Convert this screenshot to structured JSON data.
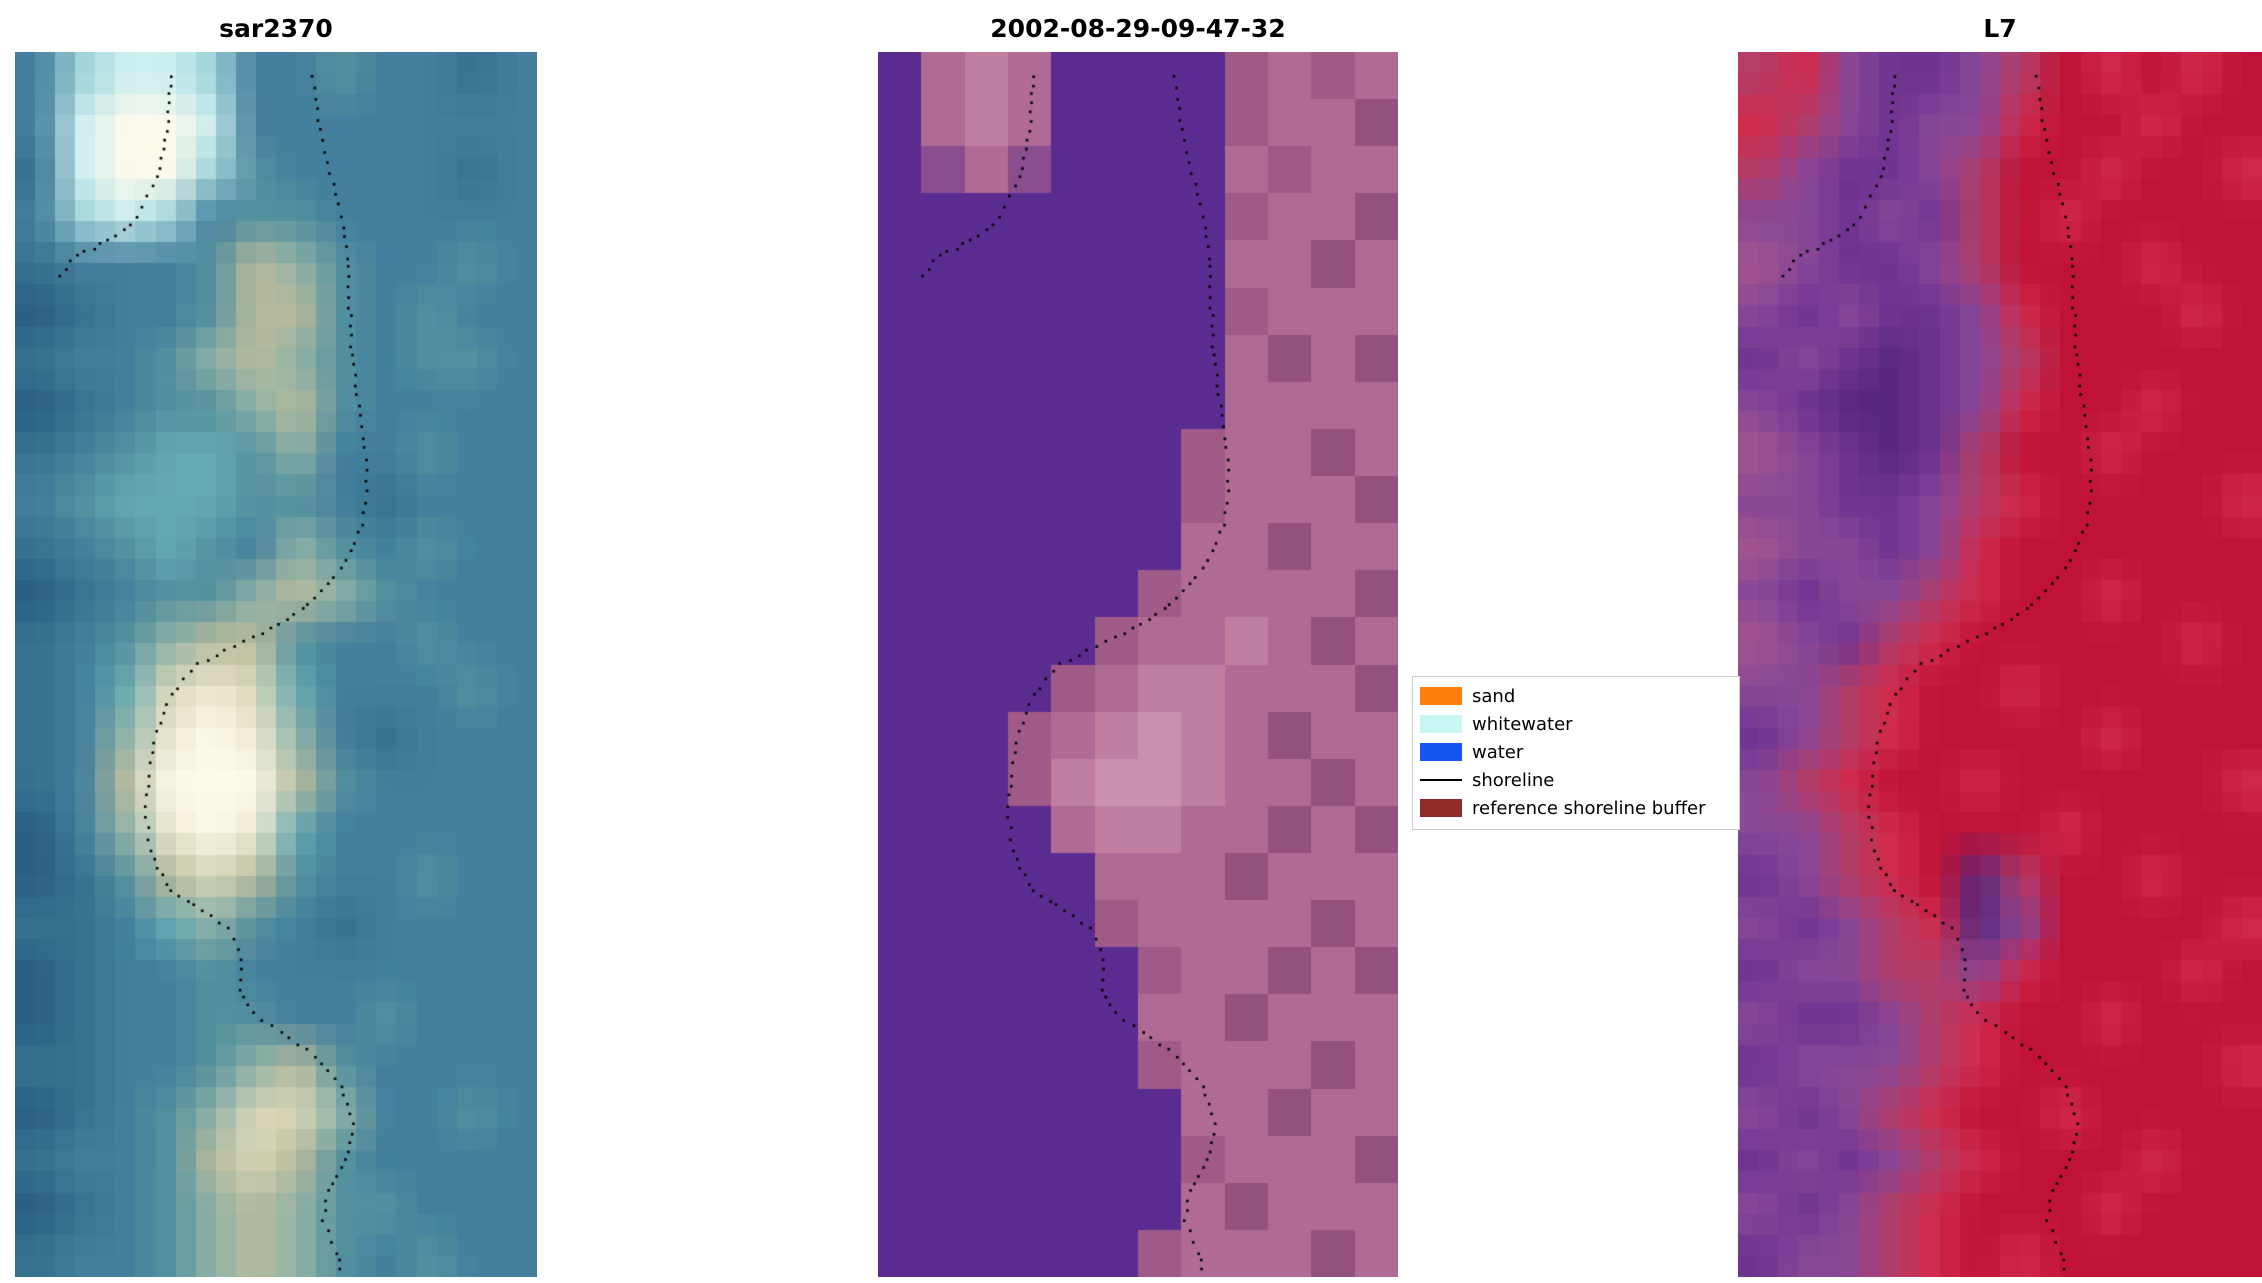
{
  "chart_data": {
    "type": "heatmap",
    "subtype": "satellite-image-classification-panels",
    "title": "",
    "grid": "off",
    "axes": "off",
    "legend_position": "center-right between panel 2 and panel 3",
    "panels": [
      {
        "title": "sar2370",
        "description": "SAR satellite image tile, blue/teal tones with bright cream blob center-left and pale cyan patch top-left, dotted shoreline overlay",
        "smooth": true,
        "blocks": [
          26,
          58
        ],
        "palette": {
          "a": "#2a5f85",
          "b": "#377390",
          "c": "#44809d",
          "d": "#55929f",
          "e": "#66aab2",
          "f": "#8fb3a8",
          "g": "#b9bb9c",
          "h": "#d9d7b8",
          "i": "#efe9d2",
          "j": "#fdfbec",
          "k": "#cdeff0",
          "l": "#9ed3da"
        },
        "pixel_grid": [
          "clkklccdccbc",
          "ckjjkccccccc",
          "bkjjldccccbc",
          "clklcddccccc",
          "bcccdgfdccdc",
          "abccdggdcdcc",
          "bccdfgfdcddc",
          "abcddfgdcccc",
          "bcdeedfccdcc",
          "cdeeeddcbccc",
          "bcdedcfdcdcc",
          "abcddfgfdccc",
          "bcdfggdccdcc",
          "bcehihecccdc",
          "bcfijifcbccc",
          "bcgjjjgdcccc",
          "acfijieccccc",
          "abdghgdccdcc",
          "bbcefdcbcccc",
          "abccdccccccc",
          "abccddccdccc",
          "bbccdfgdcccc",
          "abcdfhhfccdc",
          "bccdghgdcccc",
          "abcdfgfddccc",
          "bccdfgfdcdcc"
        ]
      },
      {
        "title": "2002-08-29-09-47-32",
        "description": "Classified optical image: flat purple water-class region on left, mauve/pink land on right with stepped class boundary, pink patch top-left, dotted shoreline overlay",
        "smooth": false,
        "blocks": [
          24,
          52
        ],
        "palette": {
          "p": "#5b2c90",
          "q": "#8a4d8d",
          "r": "#a05a88",
          "s": "#b06b94",
          "t": "#c07fa0",
          "u": "#cb90ac",
          "v": "#94517e"
        },
        "pixel_grid": [
          "pstspppprsrs",
          "pstspppprssv",
          "pqsqppppsrss",
          "pppppppprssv",
          "ppppppppssvs",
          "pppppppprsss",
          "ppppppppsvsv",
          "ppppppppssss",
          "ppppppprssvs",
          "ppppppprsssv",
          "pppppppssvss",
          "pppppprssssv",
          "ppppprsstsvs",
          "pppprsttsssv",
          "ppprstutsvss",
          "ppprtuutssvs",
          "ppppsttssvsv",
          "pppppsssvsss",
          "ppppprssssvs",
          "pppppprssvsv",
          "ppppppssvsss",
          "pppppprsssvs",
          "pppppppssvss",
          "ppppppprsssv",
          "pppppppsvsss",
          "pppppprsssvs"
        ]
      },
      {
        "title": "L7",
        "description": "Landsat 7 false-color tile: crimson red on right and across middle, purple/mauve on left, dark purple patches, dotted shoreline overlay",
        "smooth": true,
        "blocks": [
          26,
          58
        ],
        "palette": {
          "A": "#c01236",
          "B": "#d22a4c",
          "C": "#b43e68",
          "D": "#8a4898",
          "E": "#6f3492",
          "F": "#57287f",
          "G": "#a2568e",
          "H": "#c96d8e"
        },
        "pixel_grid": [
          "CBDEEDCABABA",
          "BCDEDDBAABAA",
          "CDEEDCAABAAB",
          "DDEDECABAAAA",
          "GDEEDCAAABAA",
          "DEDEEDBAAABA",
          "EDEFEDCAAAAA",
          "DEFFEDBAABAA",
          "GDEFECAABAAA",
          "DDEEDCBAAAAB",
          "GDDEDBAAAAAA",
          "DEDDCBAABAAA",
          "GDECBAAAAABA",
          "DDCBAABAAAAA",
          "EDCBAAAABAAA",
          "DCBAABAAAAAB",
          "DDCBAAABAAAA",
          "EDCBAFCAABAA",
          "DEDCBFDAAAAB",
          "EDDCCDBAAABA",
          "DEEDCBAABAAA",
          "EDDDCBAAAAAB",
          "DEDCBAABAAAA",
          "EDEDCBAAABAA",
          "DEDCBAAABAAA",
          "EDDCBABAAAAA"
        ]
      }
    ],
    "shoreline": {
      "color": "#000000",
      "style": "dotted",
      "paths": [
        [
          [
            0.57,
            0.02
          ],
          [
            0.58,
            0.055
          ],
          [
            0.6,
            0.09
          ],
          [
            0.62,
            0.125
          ],
          [
            0.635,
            0.16
          ],
          [
            0.64,
            0.2
          ],
          [
            0.645,
            0.24
          ],
          [
            0.655,
            0.28
          ],
          [
            0.67,
            0.315
          ],
          [
            0.675,
            0.35
          ],
          [
            0.665,
            0.385
          ],
          [
            0.635,
            0.415
          ],
          [
            0.6,
            0.435
          ],
          [
            0.55,
            0.455
          ],
          [
            0.49,
            0.47
          ],
          [
            0.42,
            0.485
          ],
          [
            0.35,
            0.5
          ],
          [
            0.3,
            0.525
          ],
          [
            0.27,
            0.555
          ],
          [
            0.255,
            0.59
          ],
          [
            0.25,
            0.625
          ],
          [
            0.265,
            0.66
          ],
          [
            0.3,
            0.685
          ],
          [
            0.36,
            0.7
          ],
          [
            0.41,
            0.715
          ],
          [
            0.435,
            0.74
          ],
          [
            0.43,
            0.765
          ],
          [
            0.455,
            0.785
          ],
          [
            0.51,
            0.8
          ],
          [
            0.575,
            0.82
          ],
          [
            0.625,
            0.845
          ],
          [
            0.65,
            0.875
          ],
          [
            0.635,
            0.905
          ],
          [
            0.6,
            0.93
          ],
          [
            0.59,
            0.955
          ],
          [
            0.615,
            0.98
          ],
          [
            0.63,
            1.0
          ]
        ],
        [
          [
            0.3,
            0.02
          ],
          [
            0.295,
            0.05
          ],
          [
            0.285,
            0.08
          ],
          [
            0.265,
            0.11
          ],
          [
            0.235,
            0.135
          ],
          [
            0.195,
            0.15
          ],
          [
            0.15,
            0.16
          ],
          [
            0.105,
            0.17
          ],
          [
            0.08,
            0.19
          ]
        ]
      ]
    },
    "legend": {
      "border_color": "#cccccc",
      "background": "#ffffff",
      "entries": [
        {
          "label": "sand",
          "color": "#ff7f0e",
          "type": "patch"
        },
        {
          "label": "whitewater",
          "color": "#c9f5f2",
          "type": "patch"
        },
        {
          "label": "water",
          "color": "#1556f0",
          "type": "patch"
        },
        {
          "label": "shoreline",
          "color": "#000000",
          "type": "line"
        },
        {
          "label": "reference shoreline buffer",
          "color": "#8e2b2b",
          "type": "patch"
        }
      ]
    }
  }
}
